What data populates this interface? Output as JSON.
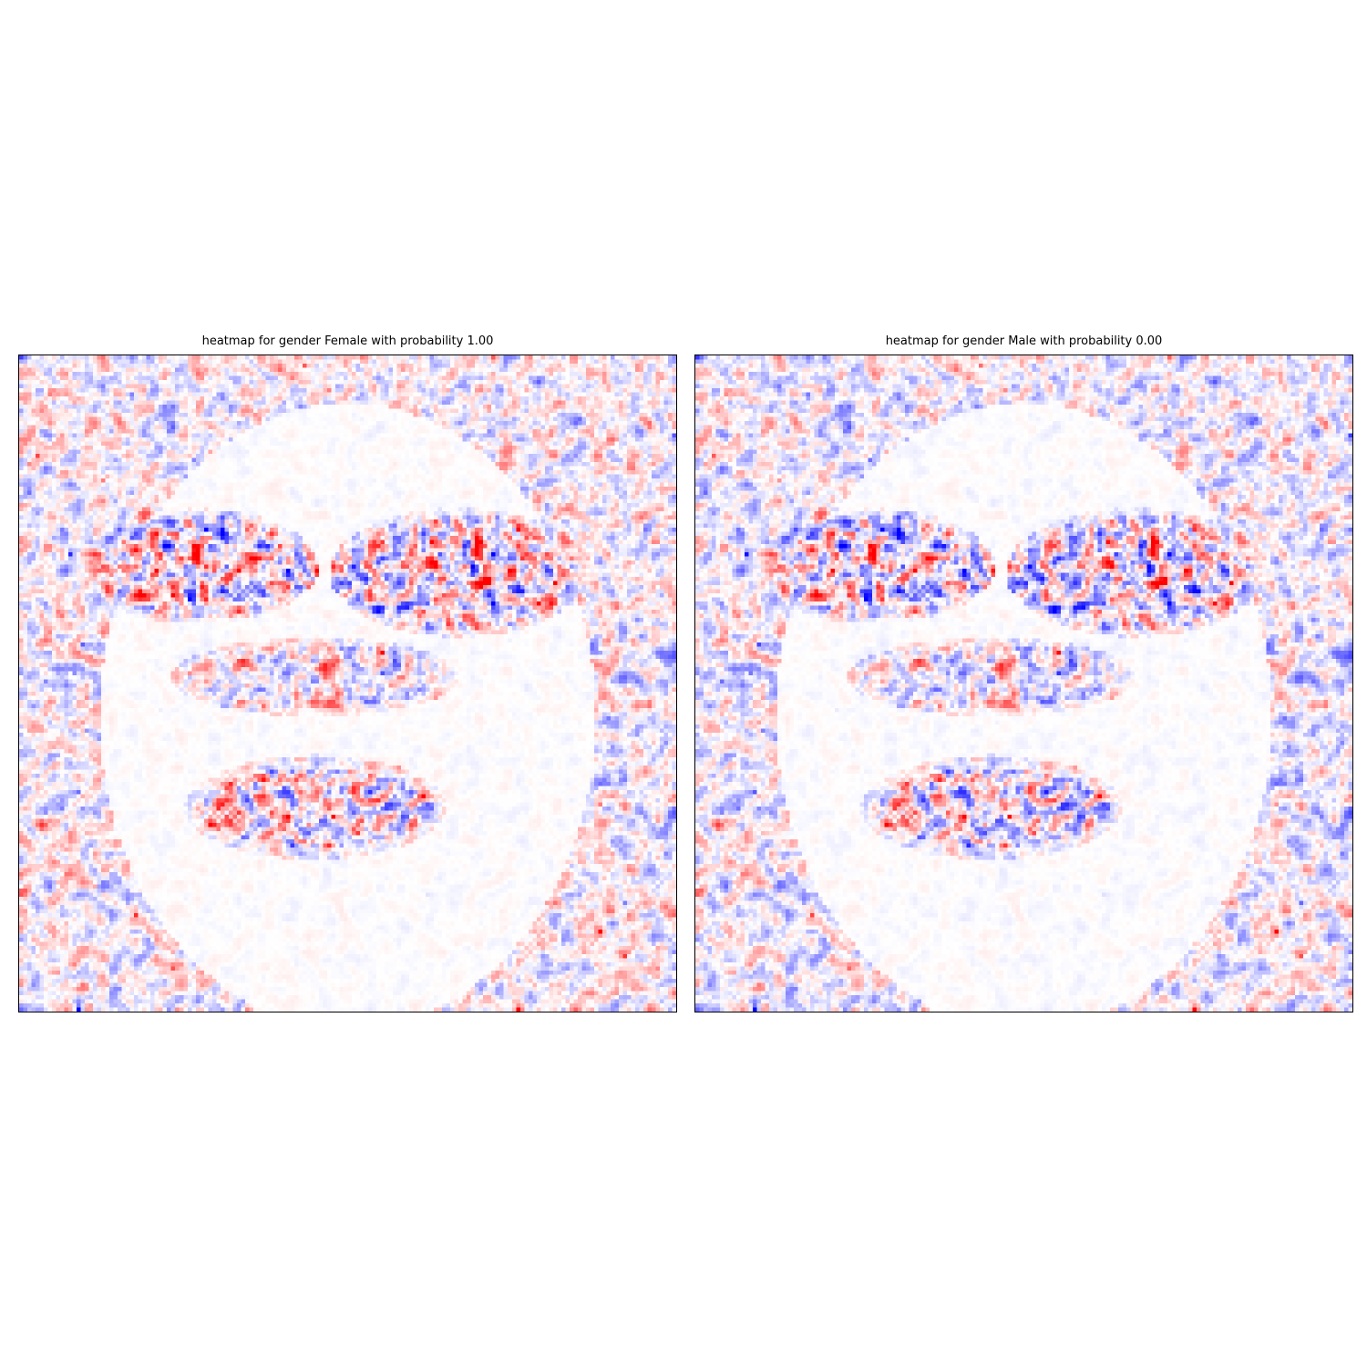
{
  "chart_data": [
    {
      "type": "heatmap",
      "title": "heatmap for gender Female with probability 1.00",
      "colormap": "bwr",
      "colors": {
        "negative": "#0000ff",
        "zero": "#ffffff",
        "positive": "#ff0000"
      },
      "axes_ticks": "none",
      "grid": false
    },
    {
      "type": "heatmap",
      "title": "heatmap for gender Male with probability 0.00",
      "colormap": "bwr",
      "colors": {
        "negative": "#0000ff",
        "zero": "#ffffff",
        "positive": "#ff0000"
      },
      "axes_ticks": "none",
      "grid": false
    }
  ]
}
